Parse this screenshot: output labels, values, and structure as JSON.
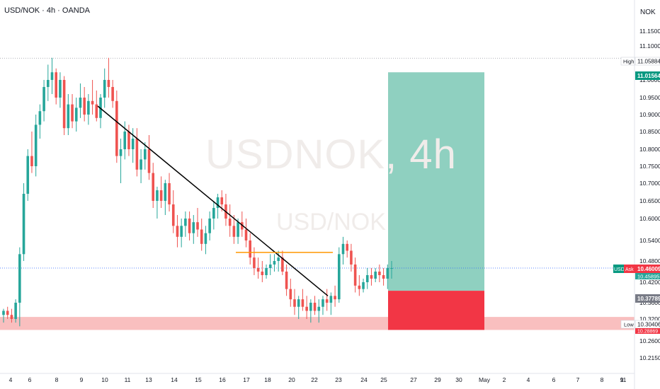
{
  "header": {
    "symbol_line": "USD/NOK · 4h · OANDA",
    "currency": "NOK"
  },
  "watermark": {
    "line1": "USDNOK, 4h",
    "line2": "USD/NOK"
  },
  "colors": {
    "up": "#26a69a",
    "down": "#ef5350",
    "target": "#8fd0c0",
    "stop": "#f23645",
    "support": "#f7a9a9",
    "trendline": "#000000",
    "resistance": "#ff9800"
  },
  "chart_data": {
    "type": "candlestick",
    "y_axis": {
      "ticks": [
        "11.15000",
        "11.10000",
        "11.05000",
        "11.00000",
        "10.95000",
        "10.90000",
        "10.85000",
        "10.80000",
        "10.75000",
        "10.70000",
        "10.65000",
        "10.60000",
        "10.54000",
        "10.48000",
        "10.42000",
        "10.36000",
        "10.32000",
        "10.26000",
        "10.21500"
      ],
      "tick_values": [
        11.15,
        11.1,
        11.05,
        11.0,
        10.95,
        10.9,
        10.85,
        10.8,
        10.75,
        10.7,
        10.65,
        10.6,
        10.54,
        10.48,
        10.42,
        10.36,
        10.32,
        10.26,
        10.215
      ]
    },
    "x_axis": {
      "ticks": [
        "4",
        "6",
        "8",
        "9",
        "10",
        "11",
        "13",
        "14",
        "15",
        "16",
        "17",
        "18",
        "20",
        "22",
        "23",
        "24",
        "25",
        "27",
        "29",
        "30",
        "May",
        "2",
        "4",
        "6",
        "7",
        "8",
        "9",
        "11"
      ]
    },
    "price_labels": [
      {
        "tag": "High",
        "value": "11.05884"
      },
      {
        "tag": "",
        "value": "11.01564"
      },
      {
        "tag": "USD",
        "ask": "Ask",
        "value": "10.46009",
        "sub": "10.45895"
      },
      {
        "tag": "",
        "value": "10.37789"
      },
      {
        "tag": "Low",
        "value": "10.30406",
        "sub": "10.28869"
      }
    ],
    "candles": [
      [
        10.33,
        10.345,
        10.31,
        10.34
      ],
      [
        10.34,
        10.35,
        10.32,
        10.33
      ],
      [
        10.33,
        10.345,
        10.31,
        10.32
      ],
      [
        10.32,
        10.37,
        10.31,
        10.36
      ],
      [
        10.36,
        10.52,
        10.3,
        10.5
      ],
      [
        10.5,
        10.7,
        10.48,
        10.67
      ],
      [
        10.67,
        10.8,
        10.65,
        10.78
      ],
      [
        10.78,
        10.85,
        10.73,
        10.75
      ],
      [
        10.75,
        10.9,
        10.72,
        10.87
      ],
      [
        10.87,
        10.93,
        10.83,
        10.91
      ],
      [
        10.91,
        11.0,
        10.88,
        10.98
      ],
      [
        10.98,
        11.04,
        10.94,
        11.0
      ],
      [
        11.0,
        11.06,
        10.96,
        11.02
      ],
      [
        11.02,
        11.03,
        10.93,
        10.95
      ],
      [
        10.95,
        11.02,
        10.92,
        11.0
      ],
      [
        11.0,
        11.01,
        10.84,
        10.86
      ],
      [
        10.86,
        10.96,
        10.84,
        10.93
      ],
      [
        10.93,
        10.96,
        10.86,
        10.88
      ],
      [
        10.88,
        10.95,
        10.85,
        10.92
      ],
      [
        10.92,
        10.99,
        10.89,
        10.95
      ],
      [
        10.95,
        10.98,
        10.88,
        10.9
      ],
      [
        10.9,
        10.96,
        10.87,
        10.94
      ],
      [
        10.94,
        11.0,
        10.9,
        10.93
      ],
      [
        10.93,
        10.97,
        10.88,
        10.89
      ],
      [
        10.89,
        10.96,
        10.86,
        10.95
      ],
      [
        10.95,
        11.03,
        10.92,
        11.0
      ],
      [
        11.0,
        11.06,
        10.95,
        10.98
      ],
      [
        10.98,
        11.0,
        10.92,
        10.94
      ],
      [
        10.94,
        10.97,
        10.76,
        10.78
      ],
      [
        10.78,
        10.83,
        10.7,
        10.8
      ],
      [
        10.8,
        10.88,
        10.77,
        10.85
      ],
      [
        10.85,
        10.87,
        10.78,
        10.8
      ],
      [
        10.8,
        10.86,
        10.76,
        10.83
      ],
      [
        10.83,
        10.86,
        10.72,
        10.74
      ],
      [
        10.74,
        10.8,
        10.7,
        10.77
      ],
      [
        10.77,
        10.82,
        10.74,
        10.8
      ],
      [
        10.8,
        10.84,
        10.71,
        10.73
      ],
      [
        10.73,
        10.76,
        10.63,
        10.65
      ],
      [
        10.65,
        10.69,
        10.6,
        10.68
      ],
      [
        10.68,
        10.72,
        10.63,
        10.65
      ],
      [
        10.65,
        10.71,
        10.61,
        10.7
      ],
      [
        10.7,
        10.73,
        10.62,
        10.64
      ],
      [
        10.64,
        10.68,
        10.56,
        10.58
      ],
      [
        10.58,
        10.61,
        10.52,
        10.55
      ],
      [
        10.55,
        10.6,
        10.52,
        10.58
      ],
      [
        10.58,
        10.62,
        10.55,
        10.6
      ],
      [
        10.6,
        10.62,
        10.54,
        10.56
      ],
      [
        10.56,
        10.61,
        10.53,
        10.59
      ],
      [
        10.59,
        10.63,
        10.55,
        10.57
      ],
      [
        10.57,
        10.6,
        10.51,
        10.53
      ],
      [
        10.53,
        10.58,
        10.5,
        10.56
      ],
      [
        10.56,
        10.62,
        10.54,
        10.6
      ],
      [
        10.6,
        10.65,
        10.57,
        10.63
      ],
      [
        10.63,
        10.67,
        10.6,
        10.66
      ],
      [
        10.66,
        10.68,
        10.62,
        10.64
      ],
      [
        10.64,
        10.67,
        10.58,
        10.6
      ],
      [
        10.6,
        10.64,
        10.55,
        10.58
      ],
      [
        10.58,
        10.61,
        10.53,
        10.55
      ],
      [
        10.55,
        10.6,
        10.53,
        10.59
      ],
      [
        10.59,
        10.62,
        10.55,
        10.57
      ],
      [
        10.57,
        10.6,
        10.52,
        10.54
      ],
      [
        10.54,
        10.56,
        10.47,
        10.49
      ],
      [
        10.49,
        10.52,
        10.44,
        10.46
      ],
      [
        10.46,
        10.49,
        10.43,
        10.45
      ],
      [
        10.45,
        10.48,
        10.42,
        10.44
      ],
      [
        10.44,
        10.47,
        10.43,
        10.46
      ],
      [
        10.46,
        10.5,
        10.44,
        10.47
      ],
      [
        10.47,
        10.5,
        10.45,
        10.48
      ],
      [
        10.48,
        10.51,
        10.45,
        10.49
      ],
      [
        10.49,
        10.51,
        10.44,
        10.45
      ],
      [
        10.45,
        10.47,
        10.38,
        10.4
      ],
      [
        10.4,
        10.43,
        10.35,
        10.37
      ],
      [
        10.37,
        10.4,
        10.33,
        10.35
      ],
      [
        10.35,
        10.38,
        10.32,
        10.37
      ],
      [
        10.37,
        10.4,
        10.34,
        10.35
      ],
      [
        10.35,
        10.38,
        10.32,
        10.34
      ],
      [
        10.34,
        10.37,
        10.31,
        10.36
      ],
      [
        10.36,
        10.38,
        10.33,
        10.34
      ],
      [
        10.34,
        10.37,
        10.31,
        10.35
      ],
      [
        10.35,
        10.38,
        10.33,
        10.37
      ],
      [
        10.37,
        10.4,
        10.34,
        10.36
      ],
      [
        10.36,
        10.39,
        10.33,
        10.38
      ],
      [
        10.38,
        10.41,
        10.35,
        10.37
      ],
      [
        10.37,
        10.52,
        10.36,
        10.5
      ],
      [
        10.5,
        10.55,
        10.47,
        10.53
      ],
      [
        10.53,
        10.54,
        10.49,
        10.51
      ],
      [
        10.51,
        10.53,
        10.45,
        10.47
      ],
      [
        10.47,
        10.49,
        10.39,
        10.41
      ],
      [
        10.41,
        10.44,
        10.38,
        10.4
      ],
      [
        10.4,
        10.43,
        10.39,
        10.42
      ],
      [
        10.42,
        10.46,
        10.4,
        10.44
      ],
      [
        10.44,
        10.46,
        10.41,
        10.43
      ],
      [
        10.43,
        10.46,
        10.42,
        10.45
      ],
      [
        10.45,
        10.47,
        10.42,
        10.44
      ],
      [
        10.44,
        10.46,
        10.41,
        10.43
      ],
      [
        10.43,
        10.47,
        10.4,
        10.46
      ],
      [
        10.46,
        10.48,
        10.43,
        10.46
      ]
    ],
    "annotations": {
      "trendline": {
        "from": [
          9,
          10.925
        ],
        "to": [
          23.4,
          10.38
        ]
      },
      "resistance": {
        "from": [
          20,
          10.505
        ],
        "to": [
          23.5,
          10.505
        ]
      },
      "support_zone": {
        "top": 10.325,
        "bottom": 10.29
      },
      "long_position": {
        "entry": 10.395,
        "target": 11.02,
        "stop": 10.29
      },
      "high_line": 11.059,
      "current_price": 10.46
    }
  }
}
